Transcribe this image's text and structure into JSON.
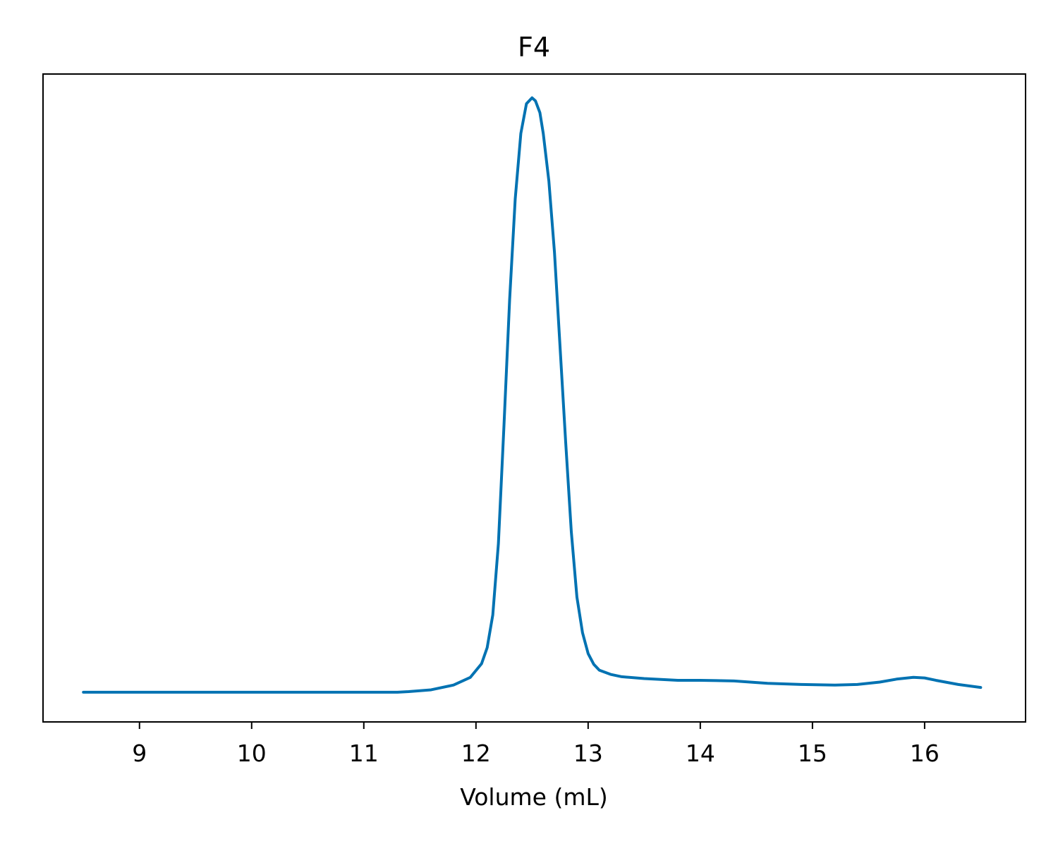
{
  "chart_data": {
    "type": "line",
    "title": "F4",
    "xlabel": "Volume (mL)",
    "ylabel": "",
    "xlim": [
      8.14,
      16.9
    ],
    "ylim": [
      -0.05,
      1.04
    ],
    "xticks": [
      9,
      10,
      11,
      12,
      13,
      14,
      15,
      16
    ],
    "yticks": [],
    "grid": false,
    "legend": null,
    "series": [
      {
        "name": "F4",
        "color": "#0072B2",
        "x": [
          8.5,
          9.0,
          9.5,
          10.0,
          10.5,
          11.0,
          11.3,
          11.4,
          11.6,
          11.8,
          11.95,
          12.05,
          12.1,
          12.15,
          12.2,
          12.25,
          12.3,
          12.35,
          12.4,
          12.45,
          12.5,
          12.53,
          12.57,
          12.6,
          12.65,
          12.7,
          12.75,
          12.8,
          12.85,
          12.9,
          12.95,
          13.0,
          13.05,
          13.1,
          13.2,
          13.3,
          13.5,
          13.8,
          14.0,
          14.3,
          14.6,
          14.9,
          15.2,
          15.4,
          15.6,
          15.75,
          15.9,
          16.0,
          16.1,
          16.3,
          16.5
        ],
        "y": [
          0.0,
          0.0,
          0.0,
          0.0,
          0.0,
          0.0,
          0.0,
          0.001,
          0.004,
          0.012,
          0.025,
          0.048,
          0.075,
          0.13,
          0.25,
          0.45,
          0.66,
          0.83,
          0.94,
          0.99,
          1.0,
          0.995,
          0.975,
          0.94,
          0.86,
          0.74,
          0.58,
          0.42,
          0.27,
          0.16,
          0.1,
          0.065,
          0.047,
          0.037,
          0.03,
          0.026,
          0.023,
          0.02,
          0.02,
          0.019,
          0.015,
          0.013,
          0.012,
          0.013,
          0.017,
          0.022,
          0.025,
          0.024,
          0.02,
          0.013,
          0.008
        ]
      }
    ]
  }
}
